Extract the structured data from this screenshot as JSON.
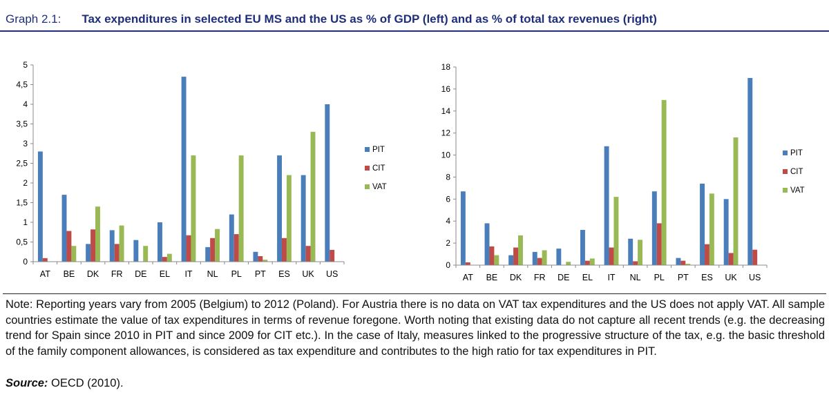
{
  "header": {
    "label": "Graph 2.1:",
    "title": "Tax expenditures in selected EU MS and the US as % of GDP (left) and as % of total tax revenues (right)"
  },
  "colors": {
    "PIT": "#4a7ebb",
    "CIT": "#be4b48",
    "VAT": "#98b954"
  },
  "chart_data": [
    {
      "type": "bar",
      "title": "",
      "xlabel": "",
      "ylabel": "",
      "categories": [
        "AT",
        "BE",
        "DK",
        "FR",
        "DE",
        "EL",
        "IT",
        "NL",
        "PL",
        "PT",
        "ES",
        "UK",
        "US"
      ],
      "series": [
        {
          "name": "PIT",
          "values": [
            2.8,
            1.7,
            0.45,
            0.8,
            0.55,
            1.0,
            4.7,
            0.37,
            1.2,
            0.25,
            2.7,
            2.2,
            4.0
          ]
        },
        {
          "name": "CIT",
          "values": [
            0.09,
            0.78,
            0.82,
            0.45,
            0.0,
            0.12,
            0.67,
            0.6,
            0.7,
            0.14,
            0.6,
            0.4,
            0.3
          ]
        },
        {
          "name": "VAT",
          "values": [
            0.0,
            0.4,
            1.4,
            0.92,
            0.4,
            0.2,
            2.7,
            0.83,
            2.7,
            0.05,
            2.2,
            3.3,
            0.0
          ]
        }
      ],
      "ylim": [
        0,
        5
      ],
      "yticks": [
        "0",
        "0,5",
        "1",
        "1,5",
        "2",
        "2,5",
        "3",
        "3,5",
        "4",
        "4,5",
        "5"
      ],
      "legend": "right"
    },
    {
      "type": "bar",
      "title": "",
      "xlabel": "",
      "ylabel": "",
      "categories": [
        "AT",
        "BE",
        "DK",
        "FR",
        "DE",
        "EL",
        "IT",
        "NL",
        "PL",
        "PT",
        "ES",
        "UK",
        "US"
      ],
      "series": [
        {
          "name": "PIT",
          "values": [
            6.7,
            3.8,
            0.9,
            1.2,
            1.5,
            3.2,
            10.8,
            2.4,
            6.7,
            0.65,
            7.4,
            6.0,
            17.0
          ]
        },
        {
          "name": "CIT",
          "values": [
            0.25,
            1.7,
            1.6,
            0.65,
            0.0,
            0.4,
            1.6,
            0.35,
            3.8,
            0.4,
            1.9,
            1.1,
            1.4
          ]
        },
        {
          "name": "VAT",
          "values": [
            0.0,
            0.9,
            2.7,
            1.35,
            0.3,
            0.6,
            6.2,
            2.3,
            15.0,
            0.12,
            6.5,
            11.6,
            0.0
          ]
        }
      ],
      "ylim": [
        0,
        18
      ],
      "yticks": [
        "0",
        "2",
        "4",
        "6",
        "8",
        "10",
        "12",
        "14",
        "16",
        "18"
      ],
      "legend": "right"
    }
  ],
  "note": "Note: Reporting years vary from 2005 (Belgium) to 2012 (Poland). For Austria there is no data on VAT tax expenditures and the US does not apply VAT. All sample countries estimate the value of tax expenditures in terms of revenue foregone. Worth noting that existing data do not capture all recent trends (e.g. the decreasing trend for Spain since 2010 in PIT and since 2009 for CIT etc.). In the case of Italy, measures linked to the progressive structure of the tax, e.g. the basic threshold of the family component allowances, is considered as tax expenditure and contributes to the high ratio for tax expenditures in PIT.",
  "source": {
    "label": "Source:",
    "text": " OECD (2010)."
  }
}
